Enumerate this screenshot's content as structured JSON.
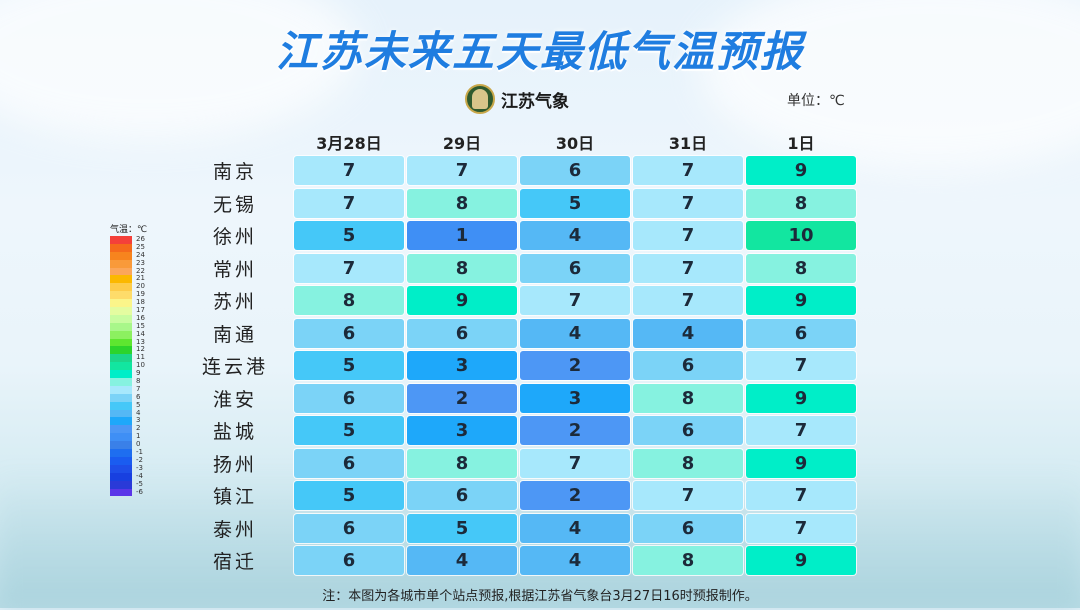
{
  "title": "江苏未来五天最低气温预报",
  "logo": {
    "icon": "jiangsu-meteorology-emblem-icon",
    "text": "江苏气象"
  },
  "unit_label": "单位：℃",
  "columns": [
    "3月28日",
    "29日",
    "30日",
    "31日",
    "1日"
  ],
  "rows": [
    {
      "city": "南京",
      "values": [
        7,
        7,
        6,
        7,
        9
      ]
    },
    {
      "city": "无锡",
      "values": [
        7,
        8,
        5,
        7,
        8
      ]
    },
    {
      "city": "徐州",
      "values": [
        5,
        1,
        4,
        7,
        10
      ]
    },
    {
      "city": "常州",
      "values": [
        7,
        8,
        6,
        7,
        8
      ]
    },
    {
      "city": "苏州",
      "values": [
        8,
        9,
        7,
        7,
        9
      ]
    },
    {
      "city": "南通",
      "values": [
        6,
        6,
        4,
        4,
        6
      ]
    },
    {
      "city": "连云港",
      "values": [
        5,
        3,
        2,
        6,
        7
      ]
    },
    {
      "city": "淮安",
      "values": [
        6,
        2,
        3,
        8,
        9
      ]
    },
    {
      "city": "盐城",
      "values": [
        5,
        3,
        2,
        6,
        7
      ]
    },
    {
      "city": "扬州",
      "values": [
        6,
        8,
        7,
        8,
        9
      ]
    },
    {
      "city": "镇江",
      "values": [
        5,
        6,
        2,
        7,
        7
      ]
    },
    {
      "city": "泰州",
      "values": [
        6,
        5,
        4,
        6,
        7
      ]
    },
    {
      "city": "宿迁",
      "values": [
        6,
        4,
        4,
        8,
        9
      ]
    }
  ],
  "color_scale": {
    "1": "#3f8ff5",
    "2": "#4d97f5",
    "3": "#1ea8fa",
    "4": "#55b8f5",
    "5": "#45c8f8",
    "6": "#7bd3f7",
    "7": "#a7e8fc",
    "8": "#86f2e0",
    "9": "#00eec8",
    "10": "#12e6a0"
  },
  "legend": {
    "title": "气温：℃",
    "items": [
      {
        "label": "26",
        "color": "#f4403a"
      },
      {
        "label": "25",
        "color": "#f56a1c"
      },
      {
        "label": "24",
        "color": "#f7841e"
      },
      {
        "label": "23",
        "color": "#f99a3a"
      },
      {
        "label": "22",
        "color": "#fba65a"
      },
      {
        "label": "21",
        "color": "#fbb800"
      },
      {
        "label": "20",
        "color": "#fdcc4a"
      },
      {
        "label": "19",
        "color": "#fedc6a"
      },
      {
        "label": "18",
        "color": "#fbf58a"
      },
      {
        "label": "17",
        "color": "#e4fca0"
      },
      {
        "label": "16",
        "color": "#c8fca0"
      },
      {
        "label": "15",
        "color": "#a8f78a"
      },
      {
        "label": "14",
        "color": "#8cf060"
      },
      {
        "label": "13",
        "color": "#5ee630"
      },
      {
        "label": "12",
        "color": "#2cd42c"
      },
      {
        "label": "11",
        "color": "#1cd68a"
      },
      {
        "label": "10",
        "color": "#12e6a0"
      },
      {
        "label": "9",
        "color": "#00eec8"
      },
      {
        "label": "8",
        "color": "#86f2e0"
      },
      {
        "label": "7",
        "color": "#a7e8fc"
      },
      {
        "label": "6",
        "color": "#7bd3f7"
      },
      {
        "label": "5",
        "color": "#45c8f8"
      },
      {
        "label": "4",
        "color": "#55b8f5"
      },
      {
        "label": "3",
        "color": "#1ea8fa"
      },
      {
        "label": "2",
        "color": "#4d97f5"
      },
      {
        "label": "1",
        "color": "#3f8ff5"
      },
      {
        "label": "0",
        "color": "#3a80e8"
      },
      {
        "label": "-1",
        "color": "#1e6ef0"
      },
      {
        "label": "-2",
        "color": "#1a5cf0"
      },
      {
        "label": "-3",
        "color": "#1e4ee8"
      },
      {
        "label": "-4",
        "color": "#1840e0"
      },
      {
        "label": "-5",
        "color": "#2a3ad8"
      },
      {
        "label": "-6",
        "color": "#5a36e8"
      }
    ]
  },
  "note": "注：本图为各城市单个站点预报,根据江苏省气象台3月27日16时预报制作。"
}
